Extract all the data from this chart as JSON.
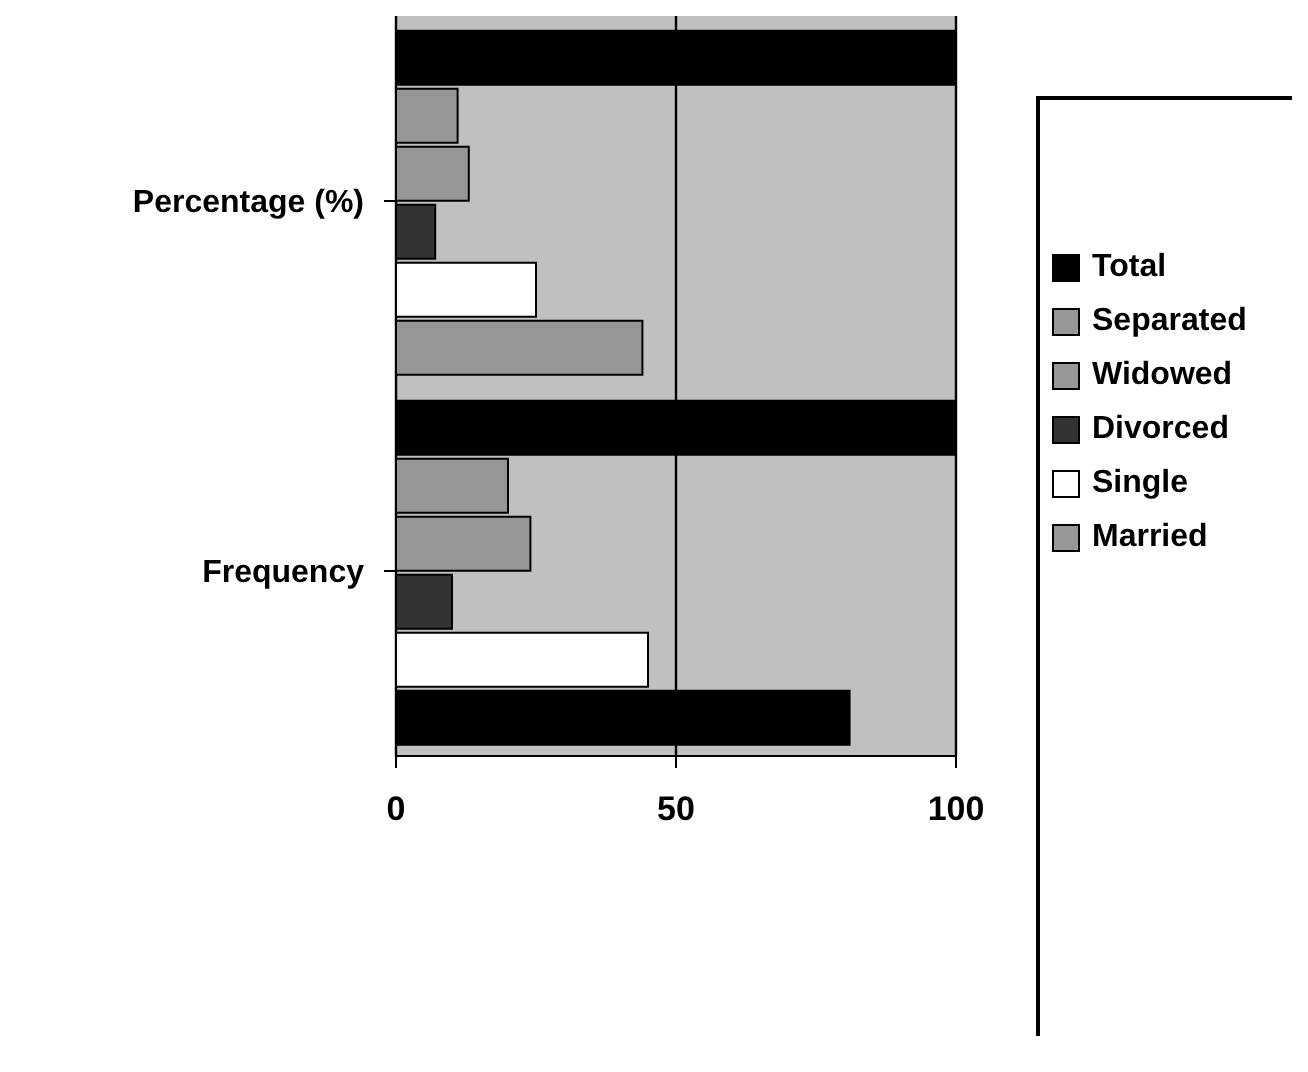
{
  "chart_data": {
    "type": "bar",
    "orientation": "horizontal",
    "categories": [
      "Percentage (%)",
      "Frequency"
    ],
    "series": [
      {
        "name": "Total",
        "color": "#000000",
        "values": [
          100,
          100
        ]
      },
      {
        "name": "Separated",
        "color": "#969696",
        "values": [
          11,
          20
        ]
      },
      {
        "name": "Widowed",
        "color": "#969696",
        "values": [
          13,
          24
        ]
      },
      {
        "name": "Divorced",
        "color": "#333333",
        "values": [
          7,
          10
        ]
      },
      {
        "name": "Single",
        "color": "#ffffff",
        "values": [
          25,
          45
        ]
      },
      {
        "name": "Married",
        "color": "#969696",
        "colors": [
          "#969696",
          "#000000"
        ],
        "values": [
          44,
          81
        ]
      }
    ],
    "xlim": [
      0,
      100
    ],
    "xticks": [
      0,
      50,
      100
    ],
    "grid": "x",
    "legend": "right"
  }
}
